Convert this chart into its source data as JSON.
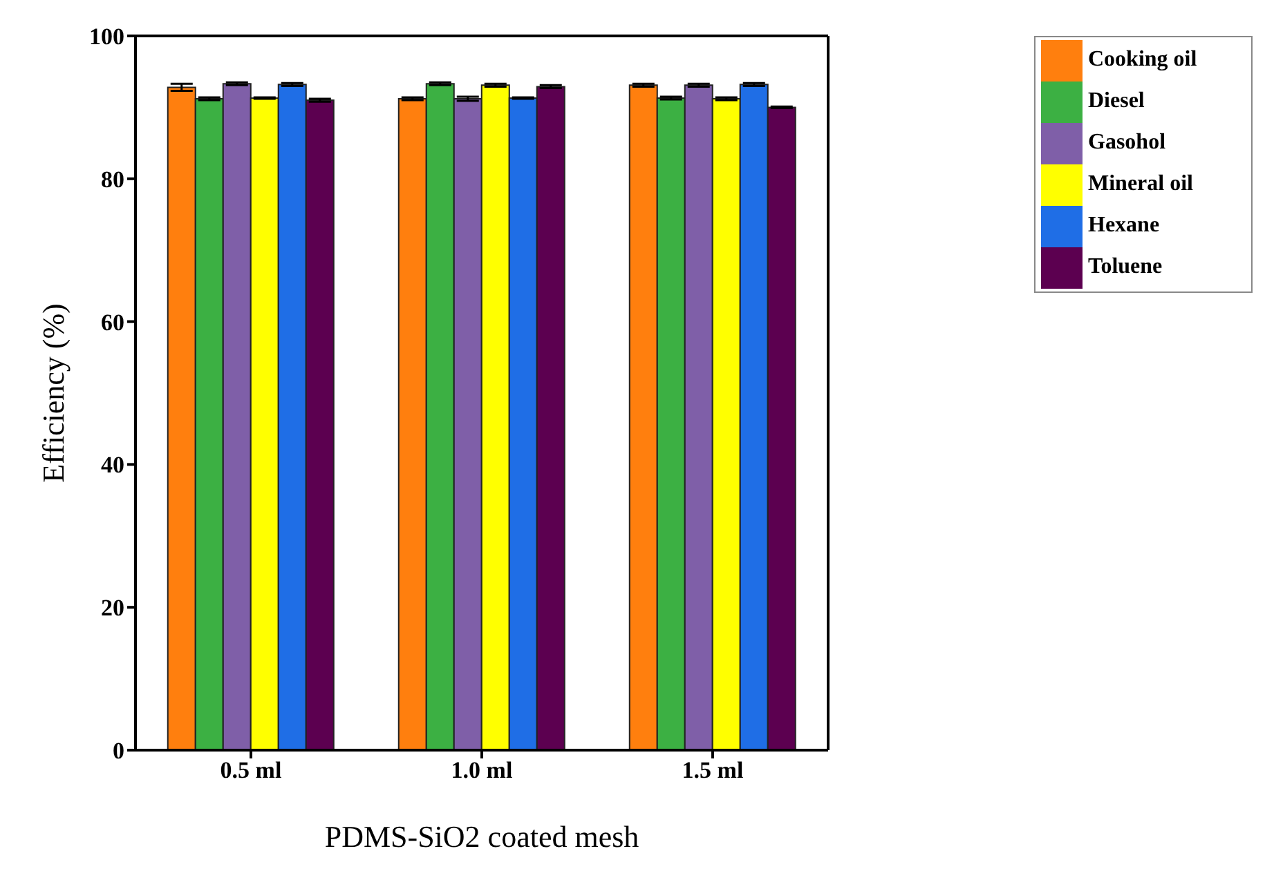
{
  "chart_data": {
    "type": "bar",
    "xlabel": "PDMS-SiO2 coated mesh",
    "ylabel": "Efficiency (%)",
    "categories": [
      "0.5 ml",
      "1.0 ml",
      "1.5 ml"
    ],
    "series": [
      {
        "name": "Cooking oil",
        "color": "#ff7f0e",
        "values": [
          92.8,
          91.2,
          93.1
        ],
        "errors": [
          0.5,
          0.2,
          0.2
        ]
      },
      {
        "name": "Diesel",
        "color": "#3cb043",
        "values": [
          91.2,
          93.3,
          91.3
        ],
        "errors": [
          0.2,
          0.2,
          0.2
        ]
      },
      {
        "name": "Gasohol",
        "color": "#7f5fa8",
        "values": [
          93.3,
          91.2,
          93.1
        ],
        "errors": [
          0.2,
          0.3,
          0.2
        ]
      },
      {
        "name": "Mineral oil",
        "color": "#ffff00",
        "values": [
          91.3,
          93.1,
          91.2
        ],
        "errors": [
          0.1,
          0.2,
          0.2
        ]
      },
      {
        "name": "Hexane",
        "color": "#1f6ee6",
        "values": [
          93.2,
          91.3,
          93.2
        ],
        "errors": [
          0.2,
          0.1,
          0.2
        ]
      },
      {
        "name": "Toluene",
        "color": "#5c0050",
        "values": [
          91.0,
          92.9,
          90.0
        ],
        "errors": [
          0.2,
          0.2,
          0.1
        ]
      }
    ],
    "ylim": [
      0,
      100
    ],
    "yticks": [
      0,
      20,
      40,
      60,
      80,
      100
    ],
    "grid": false,
    "legend": "top right"
  }
}
